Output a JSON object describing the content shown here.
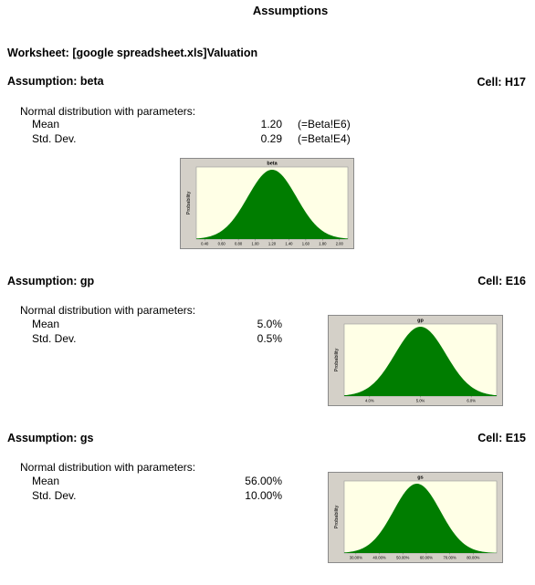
{
  "report_title": "Assumptions",
  "worksheet_label": "Worksheet: [google spreadsheet.xls]Valuation",
  "intro_text": "Normal distribution with parameters:",
  "assumptions": [
    {
      "heading": "Assumption: beta",
      "cell": "Cell: H17",
      "params": [
        {
          "label": "Mean",
          "value": "1.20",
          "ref": "(=Beta!E6)"
        },
        {
          "label": "Std. Dev.",
          "value": "0.29",
          "ref": "(=Beta!E4)"
        }
      ]
    },
    {
      "heading": "Assumption: gp",
      "cell": "Cell: E16",
      "params": [
        {
          "label": "Mean",
          "value": "5.0%"
        },
        {
          "label": "Std. Dev.",
          "value": "0.5%"
        }
      ]
    },
    {
      "heading": "Assumption: gs",
      "cell": "Cell: E15",
      "params": [
        {
          "label": "Mean",
          "value": "56.00%"
        },
        {
          "label": "Std. Dev.",
          "value": "10.00%"
        }
      ]
    }
  ],
  "colors": {
    "curve_fill": "#007d00",
    "plot_bg": "#ffffe6",
    "frame": "#d4d0c8"
  },
  "chart_data": [
    {
      "type": "area",
      "title": "beta",
      "ylabel": "Probability",
      "xlabel": "",
      "distribution": "normal",
      "mean": 1.2,
      "std": 0.29,
      "xlim": [
        0.3,
        2.1
      ],
      "xticks": [
        "0.40",
        "0.60",
        "0.80",
        "1.00",
        "1.20",
        "1.40",
        "1.60",
        "1.80",
        "2.00"
      ]
    },
    {
      "type": "area",
      "title": "gp",
      "ylabel": "Probability",
      "xlabel": "",
      "distribution": "normal",
      "mean": 5.0,
      "std": 0.5,
      "xlim": [
        3.5,
        6.5
      ],
      "xticks": [
        "4.0%",
        "5.0%",
        "6.0%"
      ]
    },
    {
      "type": "area",
      "title": "gs",
      "ylabel": "Probability",
      "xlabel": "",
      "distribution": "normal",
      "mean": 56,
      "std": 10,
      "xlim": [
        25,
        90
      ],
      "xticks": [
        "30.00%",
        "40.00%",
        "50.00%",
        "60.00%",
        "70.00%",
        "80.00%"
      ]
    }
  ]
}
